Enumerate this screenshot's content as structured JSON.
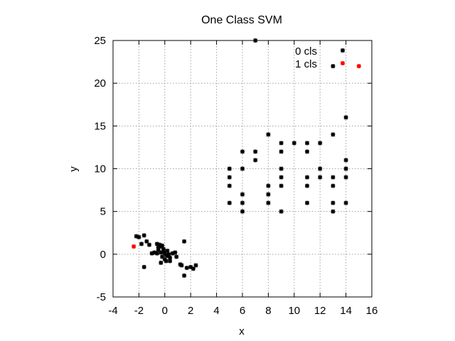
{
  "chart_data": {
    "type": "scatter",
    "title": "One Class SVM",
    "xlabel": "x",
    "ylabel": "y",
    "xlim": [
      -4,
      16
    ],
    "ylim": [
      -5,
      25
    ],
    "xticks": [
      -4,
      -2,
      0,
      2,
      4,
      6,
      8,
      10,
      12,
      14,
      16
    ],
    "yticks": [
      -5,
      0,
      5,
      10,
      15,
      20,
      25
    ],
    "grid": true,
    "legend_position": "top-right",
    "series": [
      {
        "name": "0 cls",
        "color": "#000000",
        "marker": "asterisk",
        "points": [
          [
            -2.2,
            2.1
          ],
          [
            -2.0,
            2.0
          ],
          [
            -1.6,
            2.2
          ],
          [
            -1.8,
            1.2
          ],
          [
            -1.4,
            1.5
          ],
          [
            -1.2,
            1.1
          ],
          [
            -1.6,
            -1.5
          ],
          [
            -1.0,
            0.1
          ],
          [
            -0.8,
            0.2
          ],
          [
            -0.6,
            0.1
          ],
          [
            -0.5,
            0.5
          ],
          [
            -0.6,
            1.2
          ],
          [
            -0.4,
            1.1
          ],
          [
            -0.3,
            0.9
          ],
          [
            -0.5,
            0.8
          ],
          [
            -0.2,
            1.0
          ],
          [
            -0.3,
            0.2
          ],
          [
            -0.1,
            0.3
          ],
          [
            0.0,
            0.1
          ],
          [
            0.1,
            -0.1
          ],
          [
            0.2,
            0.4
          ],
          [
            0.3,
            0.0
          ],
          [
            -0.2,
            -0.3
          ],
          [
            0.0,
            -0.6
          ],
          [
            -0.3,
            -1.0
          ],
          [
            0.1,
            -0.8
          ],
          [
            0.4,
            -0.8
          ],
          [
            0.4,
            -0.4
          ],
          [
            0.6,
            0.1
          ],
          [
            0.8,
            0.2
          ],
          [
            0.9,
            -0.3
          ],
          [
            0.2,
            -0.2
          ],
          [
            -0.1,
            0.6
          ],
          [
            1.5,
            1.5
          ],
          [
            1.3,
            -1.3
          ],
          [
            1.2,
            -1.2
          ],
          [
            1.5,
            -2.5
          ],
          [
            1.7,
            -1.6
          ],
          [
            2.0,
            -1.5
          ],
          [
            2.2,
            -1.7
          ],
          [
            2.4,
            -1.3
          ],
          [
            5,
            10
          ],
          [
            5,
            9
          ],
          [
            5,
            8
          ],
          [
            5,
            6
          ],
          [
            6,
            12
          ],
          [
            6,
            10
          ],
          [
            6,
            7
          ],
          [
            6,
            6
          ],
          [
            6,
            5
          ],
          [
            7,
            12
          ],
          [
            7,
            11
          ],
          [
            7,
            25
          ],
          [
            8,
            14
          ],
          [
            8,
            8
          ],
          [
            8,
            7
          ],
          [
            8,
            6
          ],
          [
            9,
            13
          ],
          [
            9,
            12
          ],
          [
            9,
            10
          ],
          [
            9,
            9
          ],
          [
            9,
            8
          ],
          [
            9,
            5
          ],
          [
            10,
            13
          ],
          [
            11,
            13
          ],
          [
            11,
            12
          ],
          [
            11,
            9
          ],
          [
            11,
            8
          ],
          [
            11,
            6
          ],
          [
            12,
            13
          ],
          [
            12,
            10
          ],
          [
            12,
            9
          ],
          [
            13,
            14
          ],
          [
            13,
            9
          ],
          [
            13,
            8
          ],
          [
            13,
            6
          ],
          [
            13,
            5
          ],
          [
            13,
            22
          ],
          [
            14,
            16
          ],
          [
            14,
            11
          ],
          [
            14,
            10
          ],
          [
            14,
            9
          ],
          [
            14,
            6
          ]
        ]
      },
      {
        "name": "1 cls",
        "color": "#ff0000",
        "marker": "asterisk",
        "points": [
          [
            -2.4,
            0.9
          ],
          [
            15,
            22
          ]
        ]
      }
    ]
  }
}
